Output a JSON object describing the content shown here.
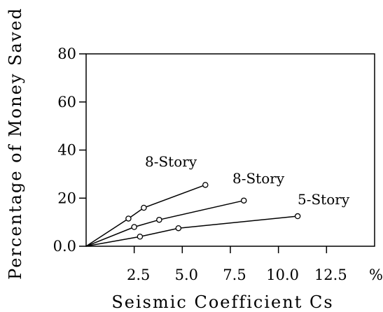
{
  "chart_data": {
    "type": "line",
    "title": "",
    "xlabel": "Seismic Coefficient Cs",
    "ylabel": "Percentage of Money Saved",
    "x_unit_label": "%",
    "xlim": [
      0,
      15
    ],
    "ylim": [
      0,
      80
    ],
    "x_ticks": [
      {
        "value": 2.5,
        "label": "2.5"
      },
      {
        "value": 5.0,
        "label": "5.0"
      },
      {
        "value": 7.5,
        "label": "7.5"
      },
      {
        "value": 10.0,
        "label": "10.0"
      },
      {
        "value": 12.5,
        "label": "12.5"
      }
    ],
    "y_ticks": [
      {
        "value": 0,
        "label": "0.0"
      },
      {
        "value": 20,
        "label": "20"
      },
      {
        "value": 40,
        "label": "40"
      },
      {
        "value": 60,
        "label": "60"
      },
      {
        "value": 80,
        "label": "80"
      }
    ],
    "grid": false,
    "series": [
      {
        "name": "8-Story",
        "points": [
          [
            0,
            0
          ],
          [
            2.2,
            11.5
          ],
          [
            3.0,
            16
          ],
          [
            6.2,
            25.5
          ]
        ]
      },
      {
        "name": "8-Story",
        "points": [
          [
            0,
            0
          ],
          [
            2.5,
            8
          ],
          [
            3.8,
            11
          ],
          [
            8.2,
            19
          ]
        ]
      },
      {
        "name": "5-Story",
        "points": [
          [
            0,
            0
          ],
          [
            2.8,
            4
          ],
          [
            4.8,
            7.5
          ],
          [
            11.0,
            12.5
          ]
        ]
      }
    ]
  }
}
